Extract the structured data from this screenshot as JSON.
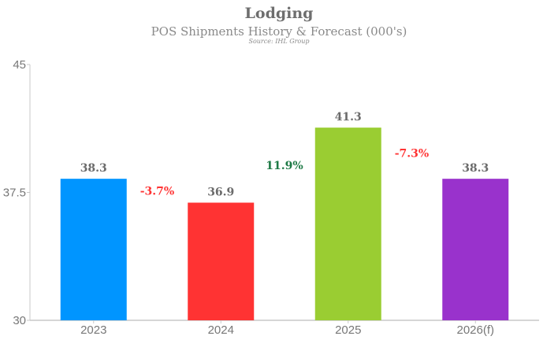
{
  "chart_data": {
    "type": "bar",
    "title": "Lodging",
    "subtitle": "POS Shipments History & Forecast (000's)",
    "source": "Source: IHL Group",
    "xlabel": "",
    "ylabel": "",
    "ylim": [
      30,
      45
    ],
    "yticks": [
      {
        "value": 30,
        "label": "30"
      },
      {
        "value": 37.5,
        "label": "37.5"
      },
      {
        "value": 45,
        "label": "45"
      }
    ],
    "grid": false,
    "legend": "none",
    "categories": [
      "2023",
      "2024",
      "2025",
      "2026(f)"
    ],
    "values": [
      38.3,
      36.9,
      41.3,
      38.3
    ],
    "value_labels": [
      "38.3",
      "36.9",
      "41.3",
      "38.3"
    ],
    "bar_colors": [
      "#0095ff",
      "#ff3333",
      "#9acd32",
      "#9932cc"
    ],
    "changes": [
      {
        "between": [
          "2023",
          "2024"
        ],
        "label": "-3.7%",
        "color": "#ff3333"
      },
      {
        "between": [
          "2024",
          "2025"
        ],
        "label": "11.9%",
        "color": "#1e7a46"
      },
      {
        "between": [
          "2025",
          "2026(f)"
        ],
        "label": "-7.3%",
        "color": "#ff3333"
      }
    ]
  }
}
